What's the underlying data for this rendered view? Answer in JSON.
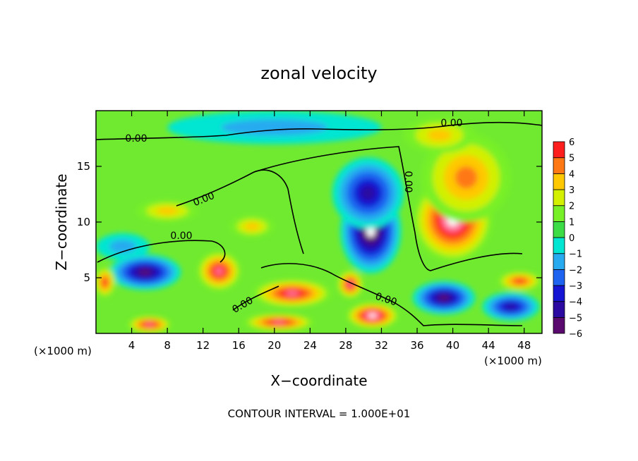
{
  "chart_data": {
    "type": "heatmap",
    "title": "zonal velocity",
    "xlabel": "X−coordinate",
    "ylabel": "Z−coordinate",
    "x_unit_left": "(×1000 m)",
    "x_unit_right": "(×1000 m)",
    "xlim": [
      0,
      50
    ],
    "ylim": [
      0,
      20
    ],
    "x_ticks": [
      4,
      8,
      12,
      16,
      20,
      24,
      28,
      32,
      36,
      40,
      44,
      48
    ],
    "y_ticks": [
      5,
      10,
      15
    ],
    "colorbar": {
      "min": -6,
      "max": 6,
      "tick_labels": [
        "6",
        "5",
        "4",
        "3",
        "2",
        "1",
        "0",
        "−1",
        "−2",
        "−3",
        "−4",
        "−5",
        "−6"
      ],
      "colors": [
        "#5a0a6e",
        "#2a0aa0",
        "#1414d2",
        "#1e64f0",
        "#28aaf0",
        "#00e6d2",
        "#3cdc46",
        "#78f028",
        "#d2f000",
        "#ffc800",
        "#ff7814",
        "#ff1e1e",
        "#ff78a0"
      ]
    },
    "contour_label": "0.00",
    "contour_interval_text": "CONTOUR INTERVAL = 1.000E+01",
    "regions": [
      {
        "kind": "jet",
        "x": 40,
        "z": 10.2,
        "rx": 4.5,
        "rz": 3.8,
        "value": 6.5
      },
      {
        "kind": "jet",
        "x": 30.8,
        "z": 9.2,
        "rx": 3.4,
        "rz": 3.8,
        "value": -6.5
      },
      {
        "kind": "jet",
        "x": 30.5,
        "z": 12.6,
        "rx": 4.0,
        "rz": 3.2,
        "value": -4.5
      },
      {
        "kind": "jet",
        "x": 41.5,
        "z": 14.0,
        "rx": 5.0,
        "rz": 4.0,
        "value": 3.5
      },
      {
        "kind": "jet",
        "x": 38.5,
        "z": 17.8,
        "rx": 4.0,
        "rz": 1.6,
        "value": 2.5
      },
      {
        "kind": "jet",
        "x": 13.8,
        "z": 5.6,
        "rx": 2.5,
        "rz": 1.8,
        "value": 5.5
      },
      {
        "kind": "jet",
        "x": 22.0,
        "z": 3.6,
        "rx": 4.5,
        "rz": 1.3,
        "value": 6.0
      },
      {
        "kind": "jet",
        "x": 28.5,
        "z": 4.4,
        "rx": 1.5,
        "rz": 1.3,
        "value": 5.5
      },
      {
        "kind": "jet",
        "x": 31.0,
        "z": 1.6,
        "rx": 3.0,
        "rz": 1.2,
        "value": 6.5
      },
      {
        "kind": "jet",
        "x": 20.5,
        "z": 1.0,
        "rx": 4.0,
        "rz": 0.8,
        "value": 5.5
      },
      {
        "kind": "jet",
        "x": 6.0,
        "z": 0.8,
        "rx": 2.5,
        "rz": 0.8,
        "value": 6.0
      },
      {
        "kind": "jet",
        "x": 5.5,
        "z": 5.5,
        "rx": 4.0,
        "rz": 1.6,
        "value": -5.5
      },
      {
        "kind": "jet",
        "x": 39.0,
        "z": 3.2,
        "rx": 3.5,
        "rz": 1.5,
        "value": -5.5
      },
      {
        "kind": "jet",
        "x": 46.5,
        "z": 2.4,
        "rx": 3.2,
        "rz": 1.3,
        "value": -5.0
      },
      {
        "kind": "jet",
        "x": 47.5,
        "z": 4.7,
        "rx": 2.5,
        "rz": 0.9,
        "value": 5.0
      },
      {
        "kind": "jet",
        "x": 1.0,
        "z": 4.6,
        "rx": 1.2,
        "rz": 1.4,
        "value": 5.0
      },
      {
        "kind": "jet",
        "x": 8.0,
        "z": 11.0,
        "rx": 3.5,
        "rz": 1.0,
        "value": 2.5
      },
      {
        "kind": "jet",
        "x": 17.5,
        "z": 9.6,
        "rx": 2.5,
        "rz": 1.0,
        "value": 3.0
      },
      {
        "kind": "jet",
        "x": 20.0,
        "z": 18.5,
        "rx": 12.0,
        "rz": 1.5,
        "value": -1.5
      },
      {
        "kind": "jet",
        "x": 3.0,
        "z": 7.8,
        "rx": 3.0,
        "rz": 1.2,
        "value": -2.0
      }
    ]
  }
}
